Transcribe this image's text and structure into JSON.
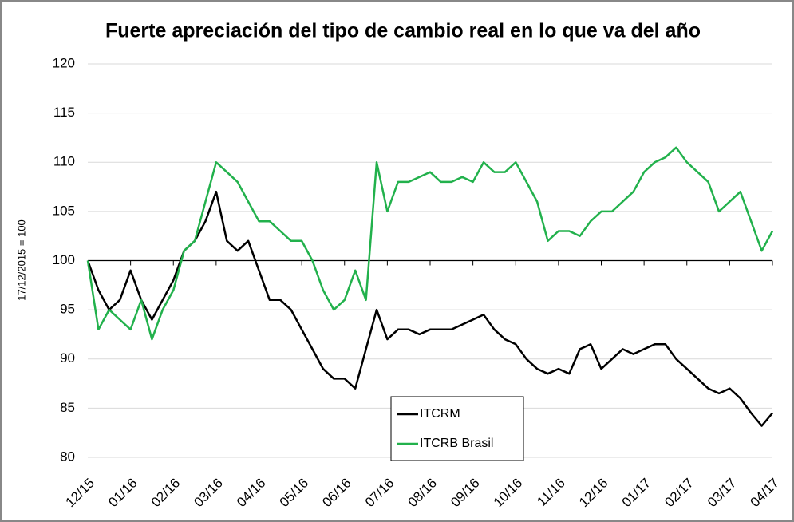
{
  "chart_data": {
    "type": "line",
    "title": "Fuerte apreciación del tipo de cambio real en lo que va del año",
    "y_label": "17/12/2015 = 100",
    "categories": [
      "12/15",
      null,
      null,
      null,
      "01/16",
      null,
      null,
      null,
      "02/16",
      null,
      null,
      null,
      "03/16",
      null,
      null,
      null,
      "04/16",
      null,
      null,
      null,
      "05/16",
      null,
      null,
      null,
      "06/16",
      null,
      null,
      null,
      "07/16",
      null,
      null,
      null,
      "08/16",
      null,
      null,
      null,
      "09/16",
      null,
      null,
      null,
      "10/16",
      null,
      null,
      null,
      "11/16",
      null,
      null,
      null,
      "12/16",
      null,
      null,
      null,
      "01/17",
      null,
      null,
      null,
      "02/17",
      null,
      null,
      null,
      "03/17",
      null,
      null,
      null,
      "04/17"
    ],
    "series": [
      {
        "name": "ITCRM",
        "color": "#000000",
        "values": [
          100,
          97,
          95,
          96,
          99,
          96,
          94,
          96,
          98,
          101,
          102,
          104,
          107,
          102,
          101,
          102,
          99,
          96,
          96,
          95,
          93,
          91,
          89,
          88,
          88,
          87,
          91,
          95,
          92,
          93,
          93,
          92.5,
          93,
          93,
          93,
          93.5,
          94,
          94.5,
          93,
          92,
          91.5,
          90,
          89,
          88.5,
          89,
          88.5,
          91,
          91.5,
          89,
          90,
          91,
          90.5,
          91,
          91.5,
          91.5,
          90,
          89,
          88,
          87,
          86.5,
          87,
          86,
          84.5,
          83.2,
          84.5
        ]
      },
      {
        "name": "ITCRB Brasil",
        "color": "#22b14c",
        "values": [
          100,
          93,
          95,
          94,
          93,
          96,
          92,
          95,
          97,
          101,
          102,
          106,
          110,
          109,
          108,
          106,
          104,
          104,
          103,
          102,
          102,
          100,
          97,
          95,
          96,
          99,
          96,
          110,
          105,
          108,
          108,
          108.5,
          109,
          108,
          108,
          108.5,
          108,
          110,
          109,
          109,
          110,
          108,
          106,
          102,
          103,
          103,
          102.5,
          104,
          105,
          105,
          106,
          107,
          109,
          110,
          110.5,
          111.5,
          110,
          109,
          108,
          105,
          106,
          107,
          104,
          101,
          103
        ]
      }
    ],
    "ylim": [
      80,
      120
    ],
    "yticks": [
      80,
      85,
      90,
      95,
      100,
      105,
      110,
      115,
      120
    ],
    "x_axis_crosses": 100,
    "grid": true
  }
}
